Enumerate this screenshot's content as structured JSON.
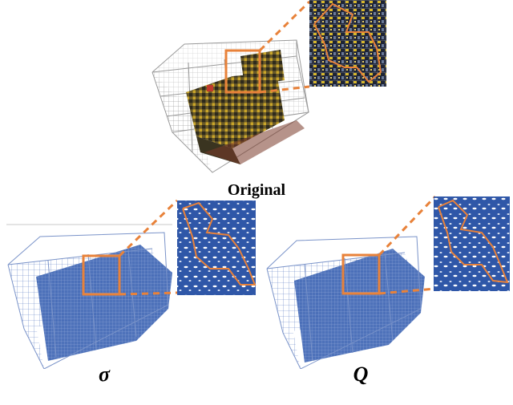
{
  "captions": {
    "original": "Original",
    "sigma": "σ",
    "q": "Q"
  },
  "colors": {
    "highlight": "#e8823a",
    "grid_gray": "#9a9a9a",
    "blue_fill": "#2f57a8",
    "blue_light": "#5a7cc4",
    "truck_yellow": "#c9a52a",
    "truck_dark": "#3a3420"
  },
  "panels": [
    {
      "name": "original",
      "style": "photo-voxel-grid"
    },
    {
      "name": "sigma",
      "style": "blue-voxel-grid"
    },
    {
      "name": "q",
      "style": "blue-voxel-grid"
    }
  ]
}
